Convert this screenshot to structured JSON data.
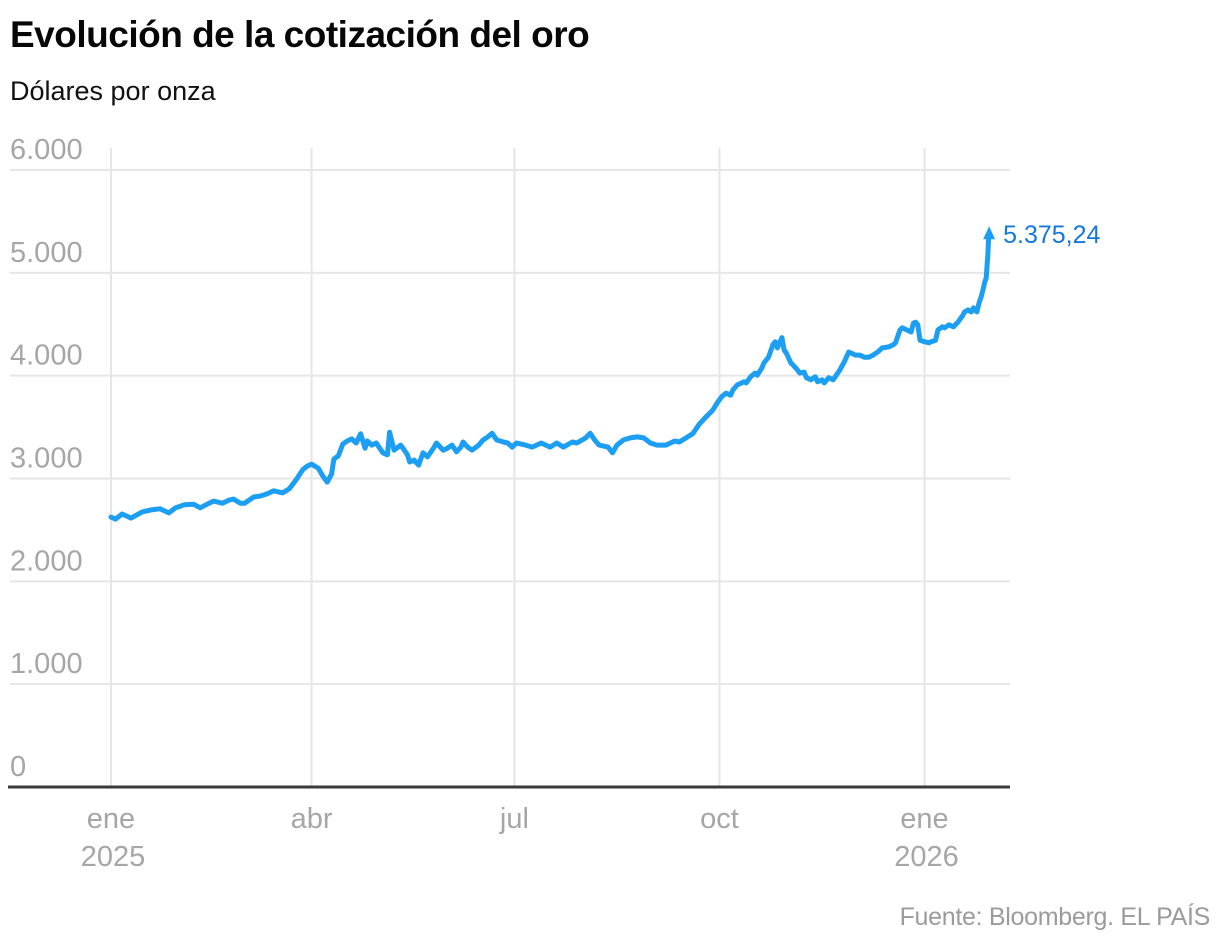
{
  "header": {
    "title": "Evolución de la cotización del oro",
    "subtitle": "Dólares por onza"
  },
  "footer": {
    "source": "Fuente: Bloomberg. EL PAÍS"
  },
  "chart_data": {
    "type": "line",
    "title": "Evolución de la cotización del oro",
    "subtitle": "Dólares por onza",
    "ylabel": "Dólares por onza",
    "xlabel": "",
    "grid": true,
    "legend": "none",
    "colors": {
      "line": "#1c9ef2",
      "end_label": "#1478d6",
      "grid": "#e6e6e6",
      "axis": "#3a3a3a",
      "tick_text": "#a6a6a6"
    },
    "y_axis": {
      "range": [
        0,
        6000
      ],
      "ticks": [
        {
          "value": 0,
          "label": "0"
        },
        {
          "value": 1000,
          "label": "1.000"
        },
        {
          "value": 2000,
          "label": "2.000"
        },
        {
          "value": 3000,
          "label": "3.000"
        },
        {
          "value": 4000,
          "label": "4.000"
        },
        {
          "value": 5000,
          "label": "5.000"
        },
        {
          "value": 6000,
          "label": "6.000"
        }
      ]
    },
    "x_axis": {
      "epoch": "2025-01-01",
      "range_days": [
        0,
        394
      ],
      "ticks": [
        {
          "t": 0,
          "label": "ene",
          "sublabel": "2025"
        },
        {
          "t": 90,
          "label": "abr",
          "sublabel": ""
        },
        {
          "t": 181,
          "label": "jul",
          "sublabel": ""
        },
        {
          "t": 273,
          "label": "oct",
          "sublabel": ""
        },
        {
          "t": 365,
          "label": "ene",
          "sublabel": "2026"
        }
      ]
    },
    "end_label": {
      "text": "5.375,24",
      "value": 5375.24
    },
    "series": [
      {
        "name": "Cotización del oro (dólares por onza)",
        "points": [
          [
            0,
            2625
          ],
          [
            2,
            2605
          ],
          [
            5,
            2655
          ],
          [
            9,
            2615
          ],
          [
            14,
            2675
          ],
          [
            18,
            2695
          ],
          [
            22,
            2705
          ],
          [
            26,
            2665
          ],
          [
            29,
            2715
          ],
          [
            33,
            2745
          ],
          [
            37,
            2750
          ],
          [
            40,
            2715
          ],
          [
            44,
            2760
          ],
          [
            46,
            2780
          ],
          [
            50,
            2760
          ],
          [
            53,
            2790
          ],
          [
            55,
            2800
          ],
          [
            58,
            2760
          ],
          [
            60,
            2760
          ],
          [
            64,
            2820
          ],
          [
            67,
            2830
          ],
          [
            70,
            2850
          ],
          [
            73,
            2880
          ],
          [
            77,
            2860
          ],
          [
            80,
            2900
          ],
          [
            83,
            2985
          ],
          [
            86,
            3085
          ],
          [
            88,
            3120
          ],
          [
            90,
            3140
          ],
          [
            93,
            3100
          ],
          [
            95,
            3025
          ],
          [
            97,
            2965
          ],
          [
            99,
            3045
          ],
          [
            100,
            3190
          ],
          [
            102,
            3220
          ],
          [
            104,
            3335
          ],
          [
            106,
            3365
          ],
          [
            108,
            3385
          ],
          [
            110,
            3345
          ],
          [
            112,
            3435
          ],
          [
            114,
            3295
          ],
          [
            115,
            3365
          ],
          [
            117,
            3325
          ],
          [
            119,
            3345
          ],
          [
            122,
            3250
          ],
          [
            124,
            3230
          ],
          [
            125,
            3450
          ],
          [
            127,
            3275
          ],
          [
            130,
            3325
          ],
          [
            131,
            3295
          ],
          [
            133,
            3230
          ],
          [
            134,
            3160
          ],
          [
            136,
            3180
          ],
          [
            138,
            3130
          ],
          [
            140,
            3250
          ],
          [
            142,
            3210
          ],
          [
            145,
            3305
          ],
          [
            146,
            3345
          ],
          [
            149,
            3275
          ],
          [
            151,
            3295
          ],
          [
            153,
            3325
          ],
          [
            155,
            3260
          ],
          [
            157,
            3305
          ],
          [
            158,
            3355
          ],
          [
            160,
            3305
          ],
          [
            162,
            3275
          ],
          [
            165,
            3325
          ],
          [
            167,
            3375
          ],
          [
            169,
            3405
          ],
          [
            171,
            3440
          ],
          [
            173,
            3375
          ],
          [
            176,
            3355
          ],
          [
            178,
            3345
          ],
          [
            180,
            3305
          ],
          [
            182,
            3345
          ],
          [
            186,
            3325
          ],
          [
            189,
            3305
          ],
          [
            193,
            3345
          ],
          [
            197,
            3305
          ],
          [
            200,
            3345
          ],
          [
            203,
            3305
          ],
          [
            207,
            3355
          ],
          [
            209,
            3345
          ],
          [
            213,
            3395
          ],
          [
            215,
            3440
          ],
          [
            217,
            3375
          ],
          [
            219,
            3325
          ],
          [
            223,
            3305
          ],
          [
            225,
            3250
          ],
          [
            227,
            3325
          ],
          [
            230,
            3375
          ],
          [
            233,
            3395
          ],
          [
            236,
            3405
          ],
          [
            239,
            3395
          ],
          [
            242,
            3345
          ],
          [
            245,
            3325
          ],
          [
            249,
            3325
          ],
          [
            251,
            3345
          ],
          [
            253,
            3365
          ],
          [
            255,
            3355
          ],
          [
            258,
            3395
          ],
          [
            261,
            3435
          ],
          [
            264,
            3530
          ],
          [
            267,
            3600
          ],
          [
            270,
            3665
          ],
          [
            272,
            3735
          ],
          [
            274,
            3795
          ],
          [
            276,
            3830
          ],
          [
            278,
            3810
          ],
          [
            279,
            3860
          ],
          [
            281,
            3910
          ],
          [
            284,
            3940
          ],
          [
            285,
            3930
          ],
          [
            287,
            3990
          ],
          [
            289,
            4025
          ],
          [
            290,
            4005
          ],
          [
            292,
            4075
          ],
          [
            293,
            4125
          ],
          [
            295,
            4180
          ],
          [
            297,
            4300
          ],
          [
            298,
            4330
          ],
          [
            299,
            4270
          ],
          [
            300,
            4320
          ],
          [
            301,
            4370
          ],
          [
            302,
            4250
          ],
          [
            303,
            4220
          ],
          [
            305,
            4125
          ],
          [
            306,
            4105
          ],
          [
            308,
            4055
          ],
          [
            309,
            4025
          ],
          [
            311,
            4035
          ],
          [
            312,
            3980
          ],
          [
            314,
            3960
          ],
          [
            316,
            3990
          ],
          [
            317,
            3940
          ],
          [
            319,
            3960
          ],
          [
            320,
            3930
          ],
          [
            322,
            3980
          ],
          [
            324,
            3960
          ],
          [
            325,
            3990
          ],
          [
            327,
            4055
          ],
          [
            329,
            4135
          ],
          [
            331,
            4230
          ],
          [
            332,
            4220
          ],
          [
            334,
            4200
          ],
          [
            336,
            4200
          ],
          [
            338,
            4180
          ],
          [
            340,
            4180
          ],
          [
            342,
            4200
          ],
          [
            344,
            4230
          ],
          [
            346,
            4270
          ],
          [
            349,
            4280
          ],
          [
            351,
            4300
          ],
          [
            352,
            4320
          ],
          [
            354,
            4445
          ],
          [
            355,
            4465
          ],
          [
            357,
            4445
          ],
          [
            359,
            4425
          ],
          [
            360,
            4510
          ],
          [
            361,
            4520
          ],
          [
            362,
            4495
          ],
          [
            363,
            4345
          ],
          [
            365,
            4330
          ],
          [
            367,
            4320
          ],
          [
            368,
            4330
          ],
          [
            370,
            4345
          ],
          [
            371,
            4445
          ],
          [
            373,
            4475
          ],
          [
            374,
            4465
          ],
          [
            376,
            4495
          ],
          [
            378,
            4475
          ],
          [
            380,
            4520
          ],
          [
            382,
            4580
          ],
          [
            383,
            4620
          ],
          [
            384.5,
            4640
          ],
          [
            386,
            4620
          ],
          [
            387,
            4660
          ],
          [
            388.5,
            4620
          ],
          [
            389.5,
            4710
          ],
          [
            390.5,
            4770
          ],
          [
            391.5,
            4860
          ],
          [
            392,
            4910
          ],
          [
            392.7,
            4950
          ],
          [
            393,
            5050
          ],
          [
            393.4,
            5170
          ],
          [
            393.7,
            5320
          ],
          [
            394,
            5375.24
          ]
        ]
      }
    ]
  }
}
